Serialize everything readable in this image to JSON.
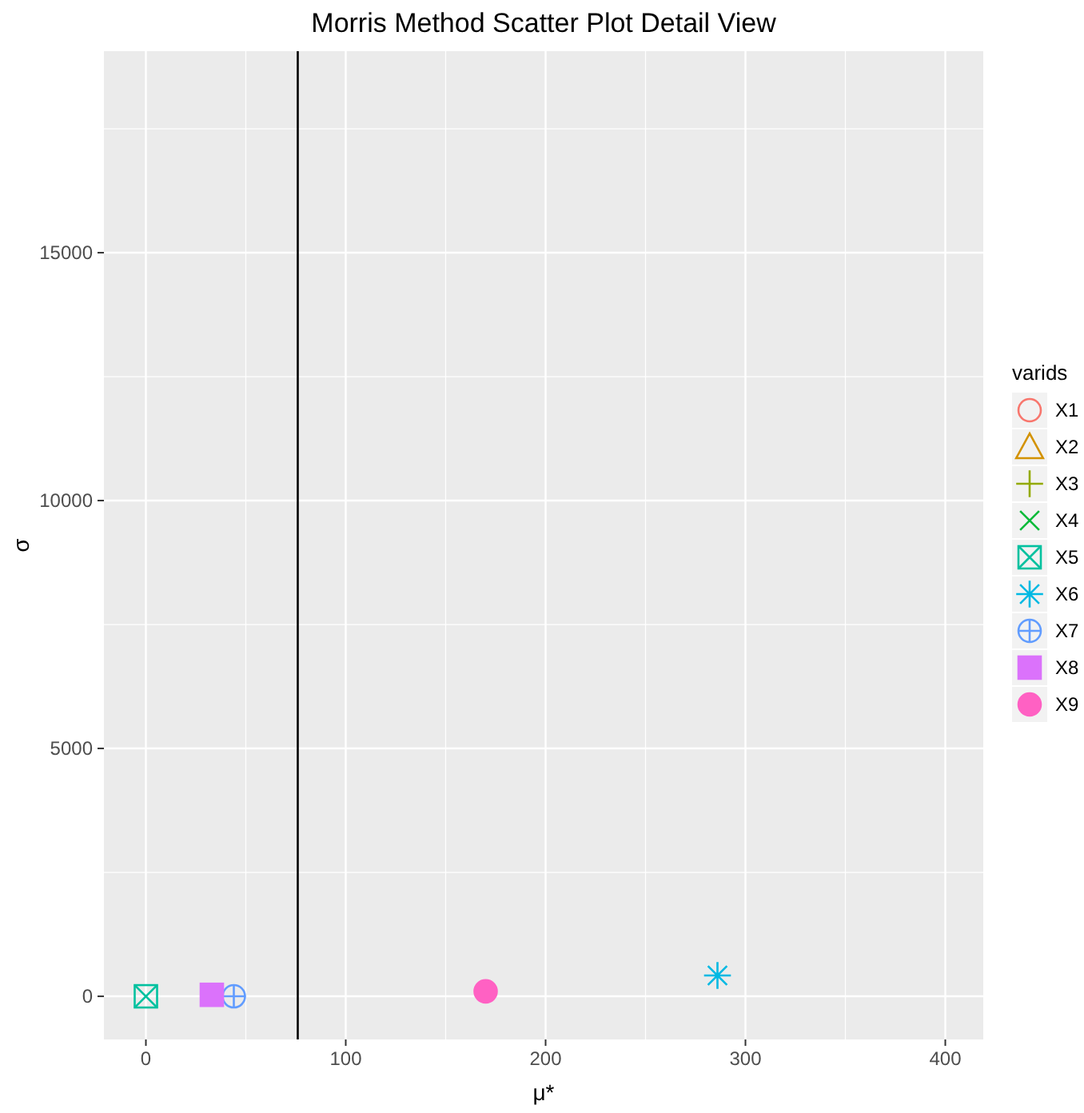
{
  "chart_data": {
    "type": "scatter",
    "title": "Morris Method Scatter Plot Detail View",
    "xlabel": "μ*",
    "ylabel": "σ",
    "legend_title": "varids",
    "legend": "right",
    "grid": true,
    "xlim": [
      -21,
      419
    ],
    "xticks": [
      0,
      100,
      200,
      300,
      400
    ],
    "ylim": [
      -870,
      19065
    ],
    "yticks": [
      0,
      5000,
      10000,
      15000
    ],
    "ref_lines": [
      {
        "axis": "x",
        "value": 76,
        "color": "#000000"
      }
    ],
    "series": [
      {
        "name": "X1",
        "color": "#F8766D",
        "marker": "circle",
        "x": [
          null
        ],
        "values": [
          null
        ]
      },
      {
        "name": "X2",
        "color": "#D39200",
        "marker": "triangle",
        "x": [
          null
        ],
        "values": [
          null
        ]
      },
      {
        "name": "X3",
        "color": "#93AA00",
        "marker": "cross",
        "x": [
          null
        ],
        "values": [
          null
        ]
      },
      {
        "name": "X4",
        "color": "#00BA38",
        "marker": "cross",
        "x": [
          null
        ],
        "values": [
          null
        ]
      },
      {
        "name": "X5",
        "color": "#00C19F",
        "marker": "square",
        "x": [
          0
        ],
        "values": [
          0
        ]
      },
      {
        "name": "X6",
        "color": "#00B9E3",
        "marker": "cross",
        "x": [
          286
        ],
        "values": [
          420
        ]
      },
      {
        "name": "X7",
        "color": "#619CFF",
        "marker": "circle",
        "x": [
          44
        ],
        "values": [
          0
        ]
      },
      {
        "name": "X8",
        "color": "#DB72FB",
        "marker": "square",
        "x": [
          33
        ],
        "values": [
          30
        ]
      },
      {
        "name": "X9",
        "color": "#FF61C3",
        "marker": "circle",
        "x": [
          170
        ],
        "values": [
          100
        ]
      }
    ]
  }
}
